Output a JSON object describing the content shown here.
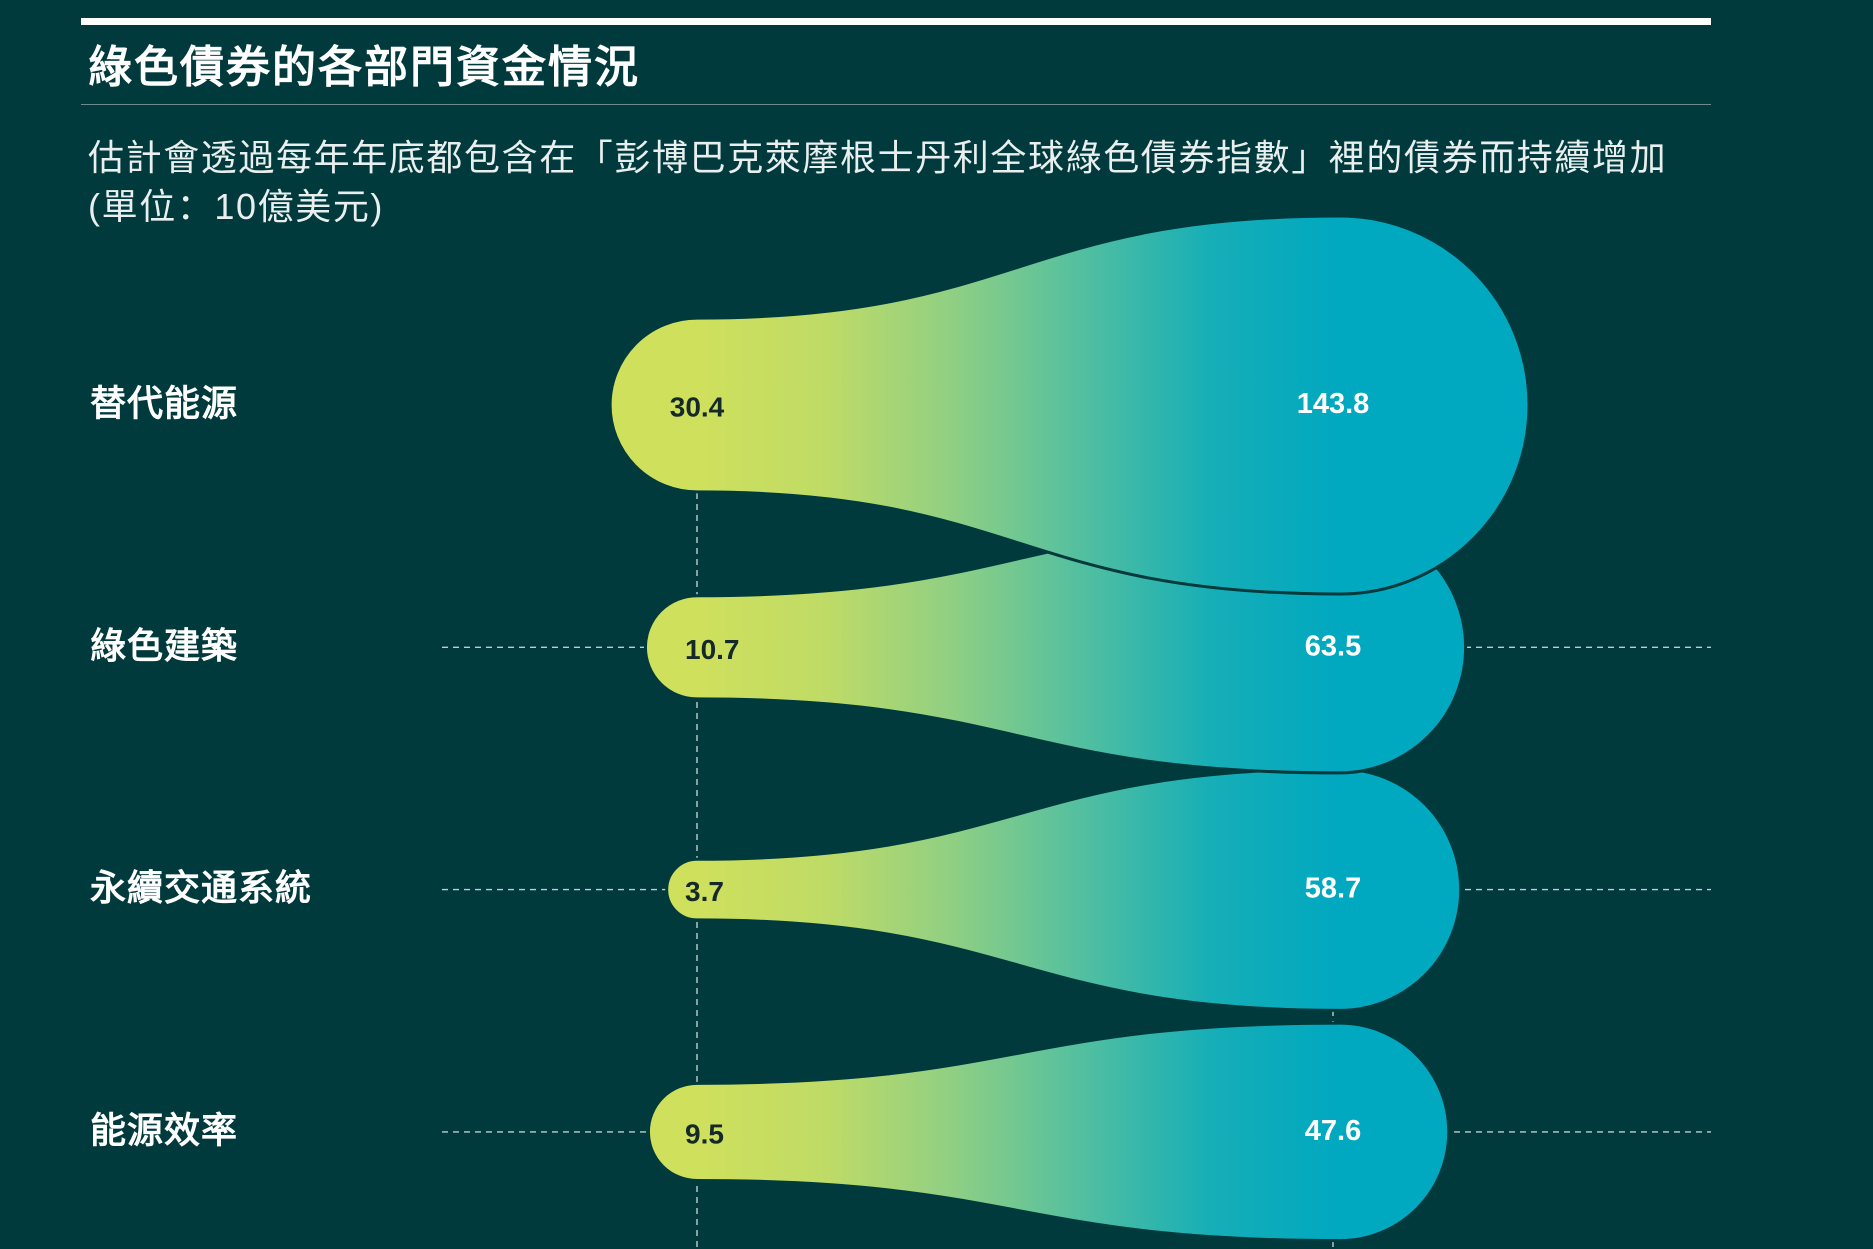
{
  "chart_data": {
    "type": "bar",
    "title": "綠色債券的各部門資金情況",
    "subtitle": "估計會透過每年年底都包含在「彭博巴克萊摩根士丹利全球綠色債券指數」裡的債券而持續增加",
    "unit": "(單位：10億美元)",
    "categories": [
      "替代能源",
      "綠色建築",
      "永續交通系統",
      "能源效率"
    ],
    "series": [
      {
        "values": [
          30.4,
          10.7,
          3.7,
          9.5
        ]
      },
      {
        "values": [
          143.8,
          63.5,
          58.7,
          47.6
        ]
      }
    ],
    "grid": true
  },
  "colors": {
    "background": "#013A3D",
    "gradient": [
      "#CFE05C",
      "#BFDB66",
      "#8FCF84",
      "#52BFA0",
      "#16AEB7",
      "#00A8C0"
    ],
    "guide": "#C3CDCD",
    "start_label": "#15292B",
    "text": "#FFFFFF"
  }
}
